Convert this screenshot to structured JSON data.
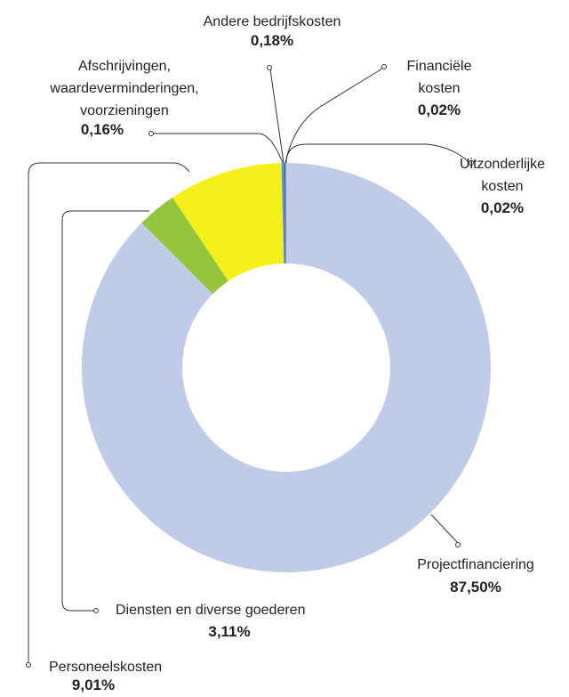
{
  "chart_data": {
    "type": "donut",
    "categories": [
      "Projectfinanciering",
      "Diensten en diverse goederen",
      "Personeelskosten",
      "Afschrijvingen,\nwaardeverminderingen,\nvoorzieningen",
      "Andere bedrijfskosten",
      "Financiële\nkosten",
      "Uitzonderlijke\nkosten"
    ],
    "values": [
      87.5,
      3.11,
      9.01,
      0.16,
      0.18,
      0.02,
      0.02
    ],
    "value_labels": [
      "87,50%",
      "3,11%",
      "9,01%",
      "0,16%",
      "0,18%",
      "0,02%",
      "0,02%"
    ],
    "colors": [
      "#c0cbe8",
      "#93c63c",
      "#f5f01a",
      "#5b9bd5",
      "#4472c4",
      "#70ad47",
      "#a5a5a5"
    ]
  }
}
